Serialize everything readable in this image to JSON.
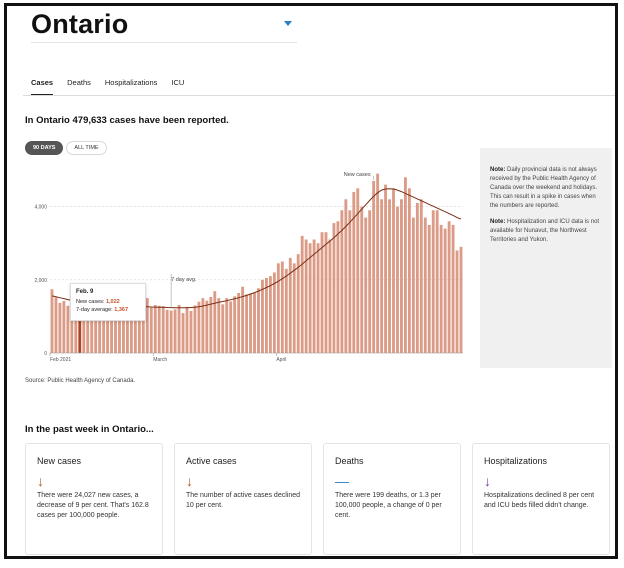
{
  "header": {
    "region": "Ontario"
  },
  "tabs": [
    {
      "label": "Cases",
      "active": true
    },
    {
      "label": "Deaths",
      "active": false
    },
    {
      "label": "Hospitalizations",
      "active": false
    },
    {
      "label": "ICU",
      "active": false
    }
  ],
  "summary": {
    "prefix": "In Ontario ",
    "count": "479,633",
    "suffix": " cases have been reported."
  },
  "range": {
    "option_90": "90 DAYS",
    "option_all": "ALL TIME"
  },
  "chart_data": {
    "type": "bar",
    "title": "",
    "series_label": "New cases",
    "avg_label": "7 day avg.",
    "ylim": [
      0,
      5000
    ],
    "yticks": [
      0,
      2000,
      4000
    ],
    "ytick_labels": [
      "0",
      "2,000",
      "4,000"
    ],
    "xtick_labels": [
      {
        "label": "Feb 2021",
        "index": 0
      },
      {
        "label": "March",
        "index": 26
      },
      {
        "label": "April",
        "index": 57
      }
    ],
    "values": [
      1740,
      1520,
      1370,
      1420,
      1290,
      1610,
      1380,
      1022,
      1370,
      1230,
      1300,
      1060,
      1420,
      1360,
      1290,
      1240,
      1270,
      1350,
      1300,
      1100,
      1180,
      1350,
      1400,
      1200,
      1500,
      1240,
      1310,
      1290,
      1280,
      1180,
      1160,
      1190,
      1310,
      1090,
      1260,
      1150,
      1300,
      1400,
      1500,
      1430,
      1530,
      1690,
      1500,
      1330,
      1500,
      1410,
      1550,
      1640,
      1810,
      1600,
      1630,
      1640,
      1770,
      2000,
      2050,
      2100,
      2200,
      2450,
      2500,
      2300,
      2600,
      2450,
      2700,
      3200,
      3100,
      3000,
      3100,
      3000,
      3300,
      3300,
      3100,
      3550,
      3600,
      3900,
      4200,
      3900,
      4400,
      4500,
      4000,
      3700,
      3900,
      4700,
      4900,
      4200,
      4600,
      4200,
      4500,
      4000,
      4200,
      4800,
      4500,
      3700,
      4100,
      4200,
      3700,
      3500,
      3900,
      3900,
      3500,
      3400,
      3600,
      3500,
      2800,
      2900
    ],
    "avg": [
      1560,
      1535,
      1510,
      1485,
      1460,
      1440,
      1420,
      1367,
      1360,
      1350,
      1340,
      1330,
      1320,
      1310,
      1305,
      1300,
      1295,
      1290,
      1285,
      1280,
      1275,
      1272,
      1268,
      1265,
      1262,
      1258,
      1255,
      1252,
      1248,
      1244,
      1240,
      1238,
      1236,
      1236,
      1238,
      1242,
      1250,
      1265,
      1285,
      1310,
      1335,
      1360,
      1385,
      1408,
      1430,
      1455,
      1480,
      1510,
      1540,
      1575,
      1610,
      1650,
      1690,
      1740,
      1790,
      1840,
      1900,
      1960,
      2030,
      2100,
      2180,
      2260,
      2340,
      2430,
      2520,
      2610,
      2700,
      2790,
      2880,
      2970,
      3060,
      3150,
      3250,
      3350,
      3460,
      3570,
      3690,
      3810,
      3930,
      4050,
      4170,
      4280,
      4380,
      4450,
      4480,
      4490,
      4480,
      4450,
      4410,
      4360,
      4310,
      4260,
      4210,
      4160,
      4110,
      4060,
      4010,
      3960,
      3910,
      3860,
      3810,
      3760,
      3700,
      3660
    ],
    "highlight": {
      "index": 7,
      "date": "Feb. 9",
      "new_cases_label": "New cases:",
      "new_cases": "1,022",
      "avg_label": "7-day average:",
      "avg": "1,367"
    }
  },
  "notes": {
    "note1_label": "Note:",
    "note1_text": "Daily provincial data is not always received by the Public Health Agency of Canada over the weekend and holidays. This can result in a spike in cases when the numbers are reported.",
    "note2_label": "Note:",
    "note2_text": "Hospitalization and ICU data is not available for Nunavut, the Northwest Territories and Yukon."
  },
  "source": "Source: Public Health Agency of Canada.",
  "week": {
    "title": "In the past week in Ontario...",
    "cards": [
      {
        "title": "New cases",
        "icon": "arrow-down-icon",
        "glyph": "↓",
        "color": "#b5542c",
        "text": "There were 24,027 new cases, a decrease of 9 per cent. That's 162.8 cases per 100,000 people."
      },
      {
        "title": "Active cases",
        "icon": "arrow-down-icon",
        "glyph": "↓",
        "color": "#b5542c",
        "text": "The number of active cases declined 10 per cent."
      },
      {
        "title": "Deaths",
        "icon": "dash-icon",
        "glyph": "—",
        "color": "#2e7fc0",
        "text": "There were 199 deaths, or 1.3 per 100,000 people, a change of 0 per cent."
      },
      {
        "title": "Hospitalizations",
        "icon": "arrow-down-icon",
        "glyph": "↓",
        "color": "#7b3fa0",
        "text": "Hospitalizations declined 8 per cent and ICU beds filled didn't change."
      }
    ]
  },
  "colors": {
    "bar": "#dc9b86",
    "bar_highlight": "#b5421e",
    "avg_line": "#7a2e16"
  }
}
